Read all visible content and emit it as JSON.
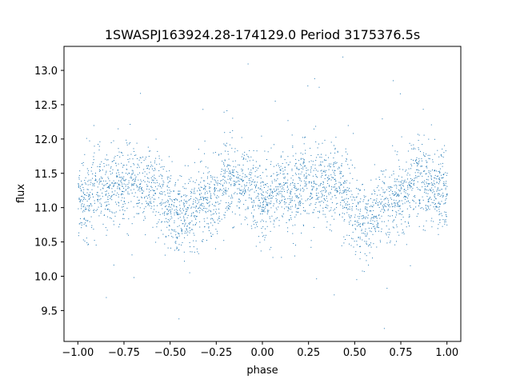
{
  "chart_data": {
    "type": "scatter",
    "title": "1SWASPJ163924.28-174129.0 Period 3175376.5s",
    "xlabel": "phase",
    "ylabel": "flux",
    "xlim": [
      -1.075,
      1.075
    ],
    "ylim": [
      9.05,
      13.35
    ],
    "x_ticks": [
      {
        "value": -1.0,
        "label": "−1.00"
      },
      {
        "value": -0.75,
        "label": "−0.75"
      },
      {
        "value": -0.5,
        "label": "−0.50"
      },
      {
        "value": -0.25,
        "label": "−0.25"
      },
      {
        "value": 0.0,
        "label": "0.00"
      },
      {
        "value": 0.25,
        "label": "0.25"
      },
      {
        "value": 0.5,
        "label": "0.50"
      },
      {
        "value": 0.75,
        "label": "0.75"
      },
      {
        "value": 1.0,
        "label": "1.00"
      }
    ],
    "y_ticks": [
      {
        "value": 9.5,
        "label": "9.5"
      },
      {
        "value": 10.0,
        "label": "10.0"
      },
      {
        "value": 10.5,
        "label": "10.5"
      },
      {
        "value": 11.0,
        "label": "11.0"
      },
      {
        "value": 11.5,
        "label": "11.5"
      },
      {
        "value": 12.0,
        "label": "12.0"
      },
      {
        "value": 12.5,
        "label": "12.5"
      },
      {
        "value": 13.0,
        "label": "13.0"
      }
    ],
    "grid": false,
    "point_color": "#1f77b4",
    "x_range": [
      -1.0,
      1.0
    ],
    "flux_profile": [
      {
        "phase": 0.0,
        "flux": 11.15
      },
      {
        "phase": 0.05,
        "flux": 11.1
      },
      {
        "phase": 0.1,
        "flux": 11.3
      },
      {
        "phase": 0.15,
        "flux": 11.2
      },
      {
        "phase": 0.2,
        "flux": 11.3
      },
      {
        "phase": 0.25,
        "flux": 11.35
      },
      {
        "phase": 0.3,
        "flux": 11.4
      },
      {
        "phase": 0.35,
        "flux": 11.3
      },
      {
        "phase": 0.4,
        "flux": 11.35
      },
      {
        "phase": 0.45,
        "flux": 11.2
      },
      {
        "phase": 0.5,
        "flux": 10.95
      },
      {
        "phase": 0.55,
        "flux": 10.8
      },
      {
        "phase": 0.6,
        "flux": 10.9
      },
      {
        "phase": 0.65,
        "flux": 11.05
      },
      {
        "phase": 0.7,
        "flux": 11.1
      },
      {
        "phase": 0.75,
        "flux": 11.1
      },
      {
        "phase": 0.8,
        "flux": 11.5
      },
      {
        "phase": 0.85,
        "flux": 11.35
      },
      {
        "phase": 0.9,
        "flux": 11.3
      },
      {
        "phase": 0.95,
        "flux": 11.25
      },
      {
        "phase": 1.0,
        "flux": 11.15
      }
    ],
    "scatter_std": 0.28
  }
}
